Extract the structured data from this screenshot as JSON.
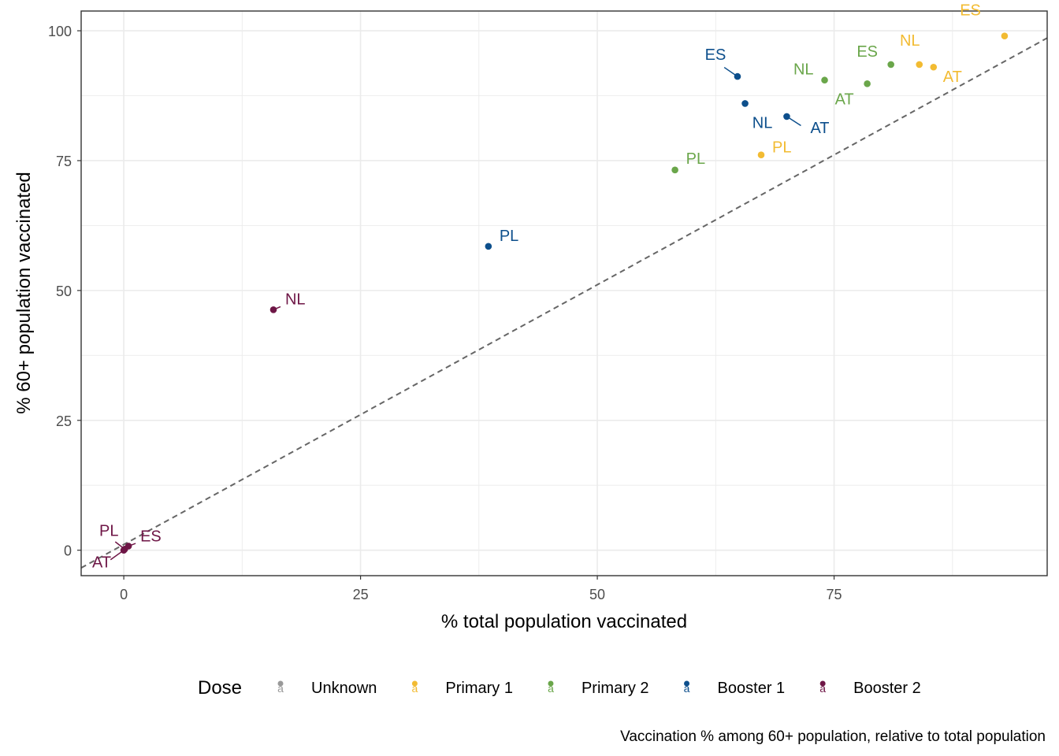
{
  "chart_data": {
    "type": "scatter",
    "xlabel": "% total population vaccinated",
    "ylabel": "% 60+ population vaccinated",
    "xlim": [
      -4.5,
      97.5
    ],
    "ylim": [
      -4.9,
      103.8
    ],
    "x_ticks": [
      0,
      25,
      50,
      75
    ],
    "y_ticks": [
      0,
      25,
      50,
      75,
      100
    ],
    "grid": true,
    "reference_line": {
      "style": "dashed",
      "color": "#666666",
      "points": [
        [
          -4.5,
          -3.4
        ],
        [
          97.5,
          98.6
        ]
      ]
    },
    "caption": "Vaccination % among 60+ population, relative to total population",
    "legend": {
      "title": "Dose",
      "placement": "bottom",
      "key_glyph": "a",
      "entries": [
        {
          "label": "Unknown",
          "color": "#999999"
        },
        {
          "label": "Primary 1",
          "color": "#F2BB32"
        },
        {
          "label": "Primary 2",
          "color": "#6AA64A"
        },
        {
          "label": "Booster 1",
          "color": "#0D4F8C"
        },
        {
          "label": "Booster 2",
          "color": "#6E1646"
        }
      ]
    },
    "series": [
      {
        "name": "Primary 1",
        "color": "#F2BB32",
        "points": [
          {
            "label": "ES",
            "x": 93.0,
            "y": 99.0
          },
          {
            "label": "NL",
            "x": 84.0,
            "y": 93.5
          },
          {
            "label": "AT",
            "x": 85.5,
            "y": 93.0
          },
          {
            "label": "PL",
            "x": 67.3,
            "y": 76.1
          }
        ]
      },
      {
        "name": "Primary 2",
        "color": "#6AA64A",
        "points": [
          {
            "label": "ES",
            "x": 81.0,
            "y": 93.5
          },
          {
            "label": "NL",
            "x": 74.0,
            "y": 90.5
          },
          {
            "label": "AT",
            "x": 78.5,
            "y": 89.8
          },
          {
            "label": "PL",
            "x": 58.2,
            "y": 73.2
          }
        ]
      },
      {
        "name": "Booster 1",
        "color": "#0D4F8C",
        "points": [
          {
            "label": "ES",
            "x": 64.8,
            "y": 91.2
          },
          {
            "label": "NL",
            "x": 65.6,
            "y": 86.0
          },
          {
            "label": "AT",
            "x": 70.0,
            "y": 83.5
          },
          {
            "label": "PL",
            "x": 38.5,
            "y": 58.5
          }
        ]
      },
      {
        "name": "Booster 2",
        "color": "#6E1646",
        "points": [
          {
            "label": "NL",
            "x": 15.8,
            "y": 46.3
          },
          {
            "label": "PL",
            "x": 0.1,
            "y": 0.2
          },
          {
            "label": "ES",
            "x": 0.5,
            "y": 0.8
          },
          {
            "label": "AT",
            "x": 0.0,
            "y": 0.0
          }
        ]
      }
    ]
  }
}
